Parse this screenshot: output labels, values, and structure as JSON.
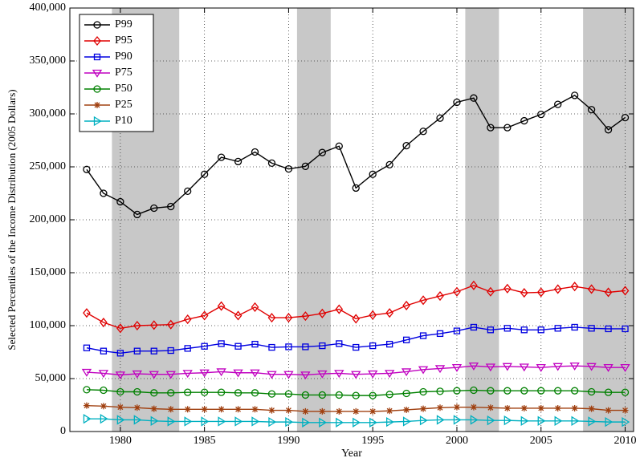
{
  "chart_data": {
    "type": "line",
    "xlabel": "Year",
    "ylabel": "Selected Percentiles of the Income Distribution (2005 Dollars)",
    "x": [
      1978,
      1979,
      1980,
      1981,
      1982,
      1983,
      1984,
      1985,
      1986,
      1987,
      1988,
      1989,
      1990,
      1991,
      1992,
      1993,
      1994,
      1995,
      1996,
      1997,
      1998,
      1999,
      2000,
      2001,
      2002,
      2003,
      2004,
      2005,
      2006,
      2007,
      2008,
      2009,
      2010
    ],
    "xlim": [
      1977,
      2010.5
    ],
    "xticks": [
      1980,
      1985,
      1990,
      1995,
      2000,
      2005,
      2010
    ],
    "ylim": [
      0,
      400000
    ],
    "yticks": [
      {
        "value": 0,
        "label": "0"
      },
      {
        "value": 50000,
        "label": "50,000"
      },
      {
        "value": 100000,
        "label": "100,000"
      },
      {
        "value": 150000,
        "label": "150,000"
      },
      {
        "value": 200000,
        "label": "200,000"
      },
      {
        "value": 250000,
        "label": "250,000"
      },
      {
        "value": 300000,
        "label": "300,000"
      },
      {
        "value": 350000,
        "label": "350,000"
      },
      {
        "value": 400000,
        "label": "400,000"
      }
    ],
    "grid": true,
    "legend": "upper left",
    "shaded_x": [
      [
        1979.5,
        1983.5
      ],
      [
        1990.5,
        1992.5
      ],
      [
        2000.5,
        2002.5
      ],
      [
        2007.5,
        2010.5
      ]
    ],
    "shade_color": "#c8c8c8",
    "series": [
      {
        "name": "P99",
        "color": "#000000",
        "marker": "circle",
        "values": [
          247500,
          225000,
          217000,
          205000,
          211000,
          212500,
          227000,
          243000,
          259000,
          255000,
          264000,
          253500,
          248000,
          250500,
          263500,
          269500,
          230000,
          243000,
          252000,
          270000,
          283500,
          296000,
          311000,
          315000,
          287000,
          287000,
          293500,
          299500,
          309000,
          317500,
          304000,
          285000,
          296500
        ]
      },
      {
        "name": "P95",
        "color": "#e00000",
        "marker": "diamond",
        "values": [
          112000,
          103000,
          97500,
          100000,
          100500,
          101000,
          106000,
          109500,
          118500,
          109500,
          117500,
          107500,
          107500,
          109000,
          111500,
          115500,
          106500,
          110000,
          112000,
          119000,
          124000,
          128000,
          132000,
          138000,
          132000,
          135000,
          131000,
          131500,
          134500,
          137000,
          134500,
          131500,
          133000
        ]
      },
      {
        "name": "P90",
        "color": "#0000e0",
        "marker": "square",
        "values": [
          79000,
          76000,
          74000,
          76000,
          76000,
          76500,
          78500,
          80500,
          83000,
          80500,
          82500,
          79500,
          80000,
          80000,
          81000,
          83000,
          79500,
          81000,
          82500,
          86500,
          90500,
          92500,
          95000,
          98500,
          96000,
          97500,
          96000,
          96000,
          97500,
          98500,
          97500,
          97000,
          97000
        ]
      },
      {
        "name": "P75",
        "color": "#c000c0",
        "marker": "triangle-down",
        "values": [
          56000,
          55000,
          53500,
          54500,
          54000,
          54000,
          55000,
          55500,
          56500,
          55500,
          55500,
          54000,
          54000,
          53500,
          54500,
          55000,
          54000,
          54500,
          55000,
          56500,
          58500,
          59500,
          60500,
          62000,
          61000,
          61500,
          61000,
          60500,
          61500,
          62000,
          61500,
          60500,
          60500
        ]
      },
      {
        "name": "P50",
        "color": "#008000",
        "marker": "circle",
        "values": [
          39500,
          39000,
          37500,
          37500,
          36500,
          36500,
          37000,
          37000,
          37000,
          36500,
          36500,
          35500,
          35500,
          34500,
          34500,
          34500,
          34000,
          34000,
          35000,
          36000,
          37500,
          38000,
          38500,
          39000,
          38500,
          38500,
          38500,
          38500,
          38500,
          38500,
          37500,
          37000,
          37000
        ]
      },
      {
        "name": "P25",
        "color": "#a04010",
        "marker": "star",
        "values": [
          24500,
          24000,
          23000,
          22500,
          21500,
          21000,
          21000,
          21000,
          21000,
          21000,
          21000,
          20000,
          20000,
          19000,
          19000,
          19000,
          19000,
          19000,
          19500,
          20500,
          21500,
          22500,
          23000,
          23000,
          22500,
          22000,
          22000,
          22000,
          22000,
          22000,
          21500,
          20000,
          20000
        ]
      },
      {
        "name": "P10",
        "color": "#00b0c0",
        "marker": "triangle-right",
        "values": [
          12000,
          12000,
          11000,
          11000,
          10000,
          9500,
          9500,
          9500,
          9500,
          9500,
          9500,
          9000,
          9000,
          8500,
          8500,
          8500,
          8500,
          8500,
          9000,
          9500,
          10500,
          11000,
          11000,
          11000,
          10500,
          10500,
          10000,
          10000,
          10000,
          10000,
          9500,
          9000,
          9000
        ]
      }
    ]
  }
}
